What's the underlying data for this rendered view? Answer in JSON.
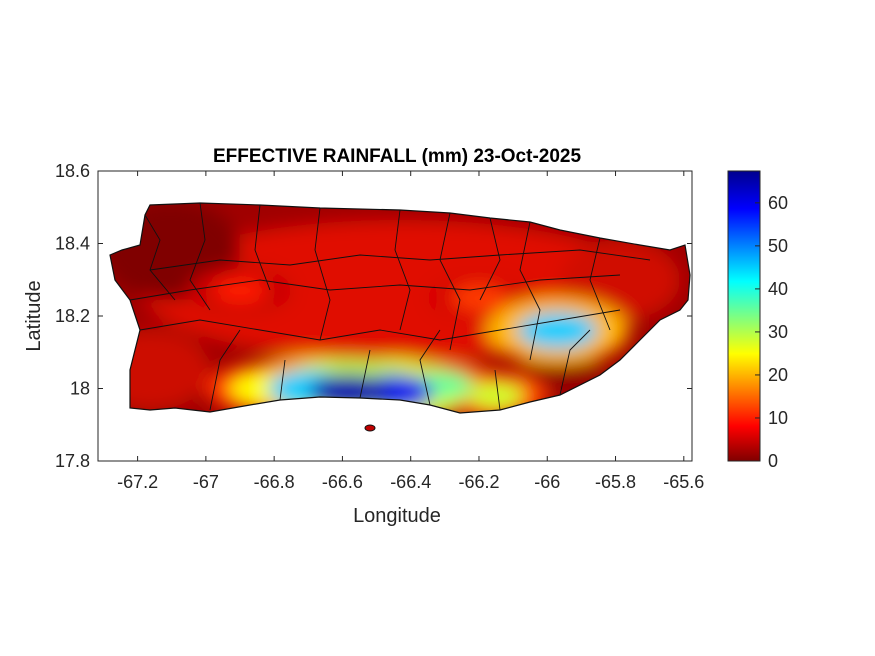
{
  "chart_data": {
    "type": "heatmap",
    "title": "EFFECTIVE RAINFALL (mm) 23-Oct-2025",
    "xlabel": "Longitude",
    "ylabel": "Latitude",
    "xlim": [
      -67.316,
      -65.576
    ],
    "ylim": [
      17.8,
      18.6
    ],
    "xticks": [
      -67.2,
      -67,
      -66.8,
      -66.6,
      -66.4,
      -66.2,
      -66,
      -65.8,
      -65.6
    ],
    "xtick_labels": [
      "-67.2",
      "-67",
      "-66.8",
      "-66.6",
      "-66.4",
      "-66.2",
      "-66",
      "-65.8",
      "-65.6"
    ],
    "yticks": [
      17.8,
      18,
      18.2,
      18.4,
      18.6
    ],
    "ytick_labels": [
      "17.8",
      "18",
      "18.2",
      "18.4",
      "18.6"
    ],
    "colorbar": {
      "colormap": "jet-reversed",
      "clim": [
        0,
        67.4
      ],
      "ticks": [
        0,
        10,
        20,
        30,
        40,
        50,
        60
      ],
      "tick_labels": [
        "0",
        "10",
        "20",
        "30",
        "40",
        "50",
        "60"
      ]
    },
    "hotspots": [
      {
        "lon": -66.58,
        "lat": 17.99,
        "value": 65
      },
      {
        "lon": -66.45,
        "lat": 17.99,
        "value": 60
      },
      {
        "lon": -66.7,
        "lat": 18.0,
        "value": 45
      },
      {
        "lon": -66.3,
        "lat": 18.01,
        "value": 35
      },
      {
        "lon": -66.15,
        "lat": 17.98,
        "value": 28
      },
      {
        "lon": -65.97,
        "lat": 18.16,
        "value": 45
      },
      {
        "lon": -66.85,
        "lat": 18.0,
        "value": 25
      },
      {
        "lon": -66.2,
        "lat": 18.25,
        "value": 12
      },
      {
        "lon": -66.9,
        "lat": 18.27,
        "value": 10
      }
    ],
    "grid": false
  }
}
